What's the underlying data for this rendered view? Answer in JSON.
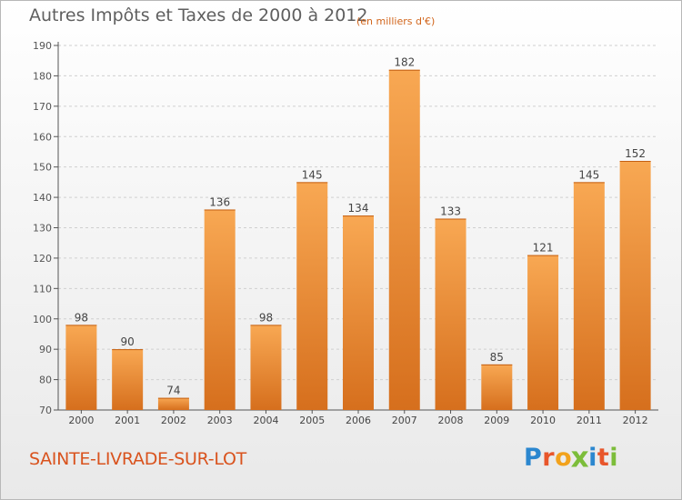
{
  "title": "Autres Impôts et Taxes de 2000 à 2012",
  "subtitle": "(en milliers d'€)",
  "city": "SAINTE-LIVRADE-SUR-LOT",
  "logo": {
    "letters": [
      "P",
      "r",
      "o",
      "x",
      "i",
      "t",
      "i"
    ],
    "colors": [
      "#2b87cf",
      "#e8562b",
      "#f2a21c",
      "#7cbd3a",
      "#2b87cf",
      "#e8562b",
      "#7cbd3a"
    ]
  },
  "colors": {
    "bar_light": "#f8a853",
    "bar_dark": "#d66f1d",
    "title": "#5f5f5f",
    "city": "#d9531e"
  },
  "chart_data": {
    "type": "bar",
    "title": "Autres Impôts et Taxes de 2000 à 2012",
    "subtitle": "(en milliers d'€)",
    "categories": [
      "2000",
      "2001",
      "2002",
      "2003",
      "2004",
      "2005",
      "2006",
      "2007",
      "2008",
      "2009",
      "2010",
      "2011",
      "2012"
    ],
    "values": [
      98,
      90,
      74,
      136,
      98,
      145,
      134,
      182,
      133,
      85,
      121,
      145,
      152
    ],
    "ylim": [
      70,
      190
    ],
    "yticks": [
      70,
      80,
      90,
      100,
      110,
      120,
      130,
      140,
      150,
      160,
      170,
      180,
      190
    ],
    "grid": true,
    "data_labels": true
  }
}
